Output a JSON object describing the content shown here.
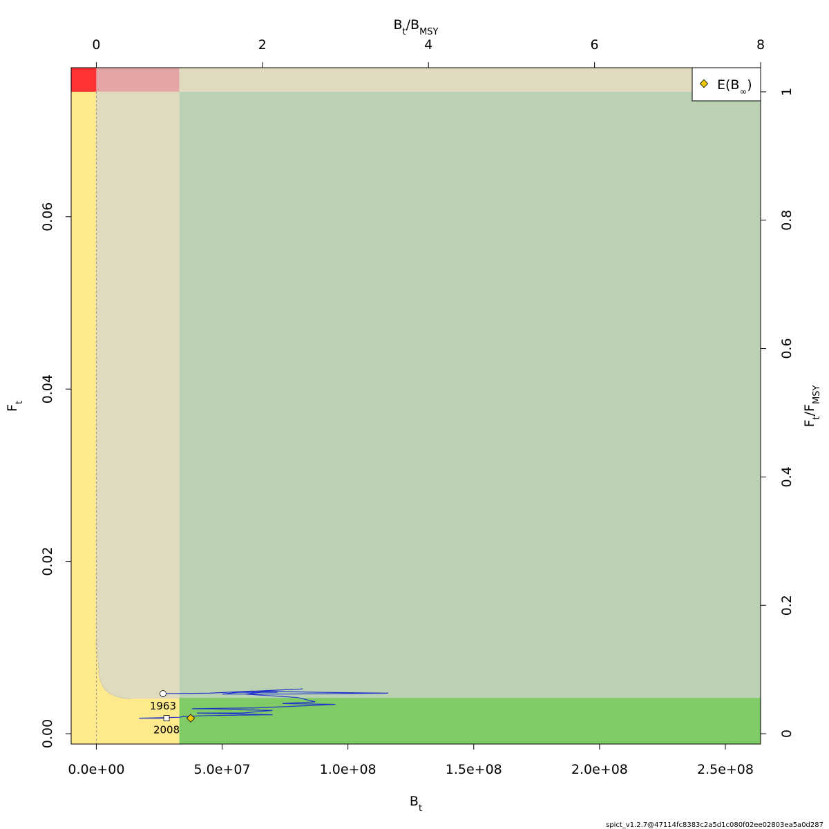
{
  "chart_data": {
    "type": "scatter",
    "xlabel": {
      "main": "B",
      "sub": "t"
    },
    "ylabel": {
      "main": "F",
      "sub": "t"
    },
    "x2label": {
      "b1": "B",
      "s1": "t",
      "slash": "/",
      "b2": "B",
      "s2": "MSY"
    },
    "y2label": {
      "b1": "F",
      "s1": "t",
      "slash": "/",
      "b2": "F",
      "s2": "MSY"
    },
    "xlim": [
      -10000000,
      264000000
    ],
    "ylim": [
      -0.0012,
      0.0773
    ],
    "x_ticks": [
      0,
      50000000,
      100000000,
      150000000,
      200000000,
      250000000
    ],
    "x_tick_labels": [
      "0.0e+00",
      "5.0e+07",
      "1.0e+08",
      "1.5e+08",
      "2.0e+08",
      "2.5e+08"
    ],
    "y_ticks": [
      0,
      0.02,
      0.04,
      0.06
    ],
    "y_tick_labels": [
      "0.00",
      "0.02",
      "0.04",
      "0.06"
    ],
    "x2_ticks": [
      0,
      2,
      4,
      6,
      8
    ],
    "x2_tick_labels": [
      "0",
      "2",
      "4",
      "6",
      "8"
    ],
    "y2_ticks": [
      0,
      0.2,
      0.4,
      0.6,
      0.8,
      1
    ],
    "y2_tick_labels": [
      "0",
      "0.2",
      "0.4",
      "0.6",
      "0.8",
      "1"
    ],
    "Bmsy": 33000000,
    "Fmsy": 0.0745,
    "legend": {
      "label_main": "E(B",
      "label_sub": "∞",
      "label_close": ")",
      "placement": "top-right"
    },
    "zone_colors": {
      "red": "#ff3333",
      "pink": "#e3a5a5",
      "beige": "#e0dbbf",
      "yellow": "#ffe98d",
      "lightgreen": "#bad2b3",
      "green": "#80cb66",
      "equilibrium_band": "#e0dbbf"
    },
    "equilibrium_F": 0.00415,
    "trajectory_color": "#2233cc",
    "trajectory": [
      [
        26500000,
        0.00465
      ],
      [
        45000000,
        0.0047
      ],
      [
        62000000,
        0.00495
      ],
      [
        72000000,
        0.0048
      ],
      [
        54000000,
        0.0048
      ],
      [
        82000000,
        0.0052
      ],
      [
        60000000,
        0.0049
      ],
      [
        50000000,
        0.0046
      ],
      [
        75000000,
        0.0046
      ],
      [
        116000000,
        0.0047
      ],
      [
        90000000,
        0.0048
      ],
      [
        68000000,
        0.0049
      ],
      [
        59000000,
        0.0046
      ],
      [
        80000000,
        0.0042
      ],
      [
        87000000,
        0.0037
      ],
      [
        74000000,
        0.0035
      ],
      [
        95000000,
        0.0034
      ],
      [
        72000000,
        0.0031
      ],
      [
        64000000,
        0.003
      ],
      [
        38000000,
        0.0029
      ],
      [
        70000000,
        0.0027
      ],
      [
        58000000,
        0.0024
      ],
      [
        40000000,
        0.0024
      ],
      [
        70000000,
        0.0022
      ],
      [
        44000000,
        0.0021
      ],
      [
        35000000,
        0.002
      ],
      [
        33000000,
        0.0019
      ],
      [
        17000000,
        0.0018
      ],
      [
        27900000,
        0.0018
      ]
    ],
    "first_point": {
      "x": 26500000,
      "y": 0.00465,
      "label": "1963"
    },
    "last_point": {
      "x": 27900000,
      "y": 0.0018,
      "label": "2008"
    },
    "equilibrium_point": {
      "x": 37500000,
      "y": 0.0018,
      "color": "#f0c800"
    },
    "footer": "spict_v1.2.7@47114fc8383c2a5d1c080f02ee02803ea5a0d287"
  }
}
